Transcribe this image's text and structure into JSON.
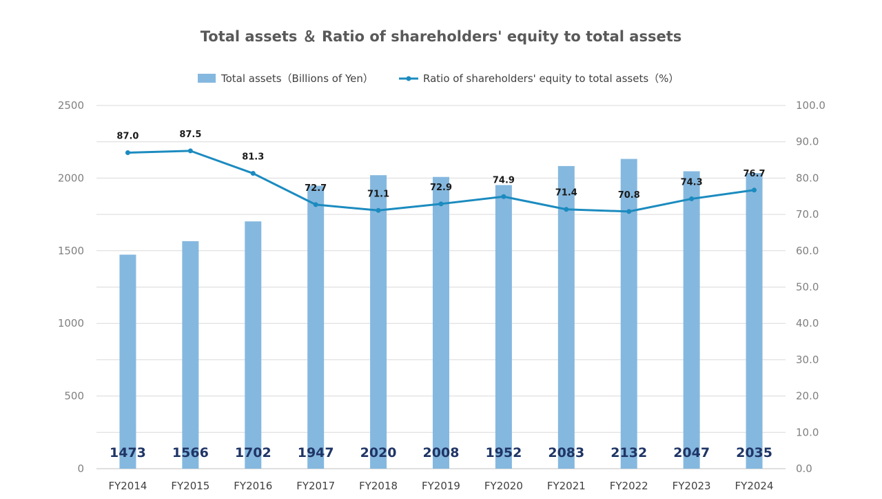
{
  "chart_data": {
    "type": "bar+line",
    "title": "Total assets ＆ Ratio of shareholders' equity to total assets",
    "categories": [
      "FY2014",
      "FY2015",
      "FY2016",
      "FY2017",
      "FY2018",
      "FY2019",
      "FY2020",
      "FY2021",
      "FY2022",
      "FY2023",
      "FY2024"
    ],
    "series": [
      {
        "name": "Total assets（Billions of Yen）",
        "type": "bar",
        "axis": "left",
        "color": "#85b8df",
        "values": [
          1473,
          1566,
          1702,
          1947,
          2020,
          2008,
          1952,
          2083,
          2132,
          2047,
          2035
        ]
      },
      {
        "name": "Ratio of shareholders' equity to total assets（%）",
        "type": "line",
        "axis": "right",
        "color": "#1b8bbf",
        "values": [
          87.0,
          87.5,
          81.3,
          72.7,
          71.1,
          72.9,
          74.9,
          71.4,
          70.8,
          74.3,
          76.7
        ]
      }
    ],
    "y_left": {
      "range": [
        0,
        2500
      ],
      "ticks": [
        "0",
        "500",
        "1000",
        "1500",
        "2000",
        "2500"
      ]
    },
    "y_right": {
      "range": [
        0,
        100
      ],
      "ticks": [
        "0.0",
        "10.0",
        "20.0",
        "30.0",
        "40.0",
        "50.0",
        "60.0",
        "70.0",
        "80.0",
        "90.0",
        "100.0"
      ]
    },
    "grid": true,
    "legend_position": "top-center"
  }
}
